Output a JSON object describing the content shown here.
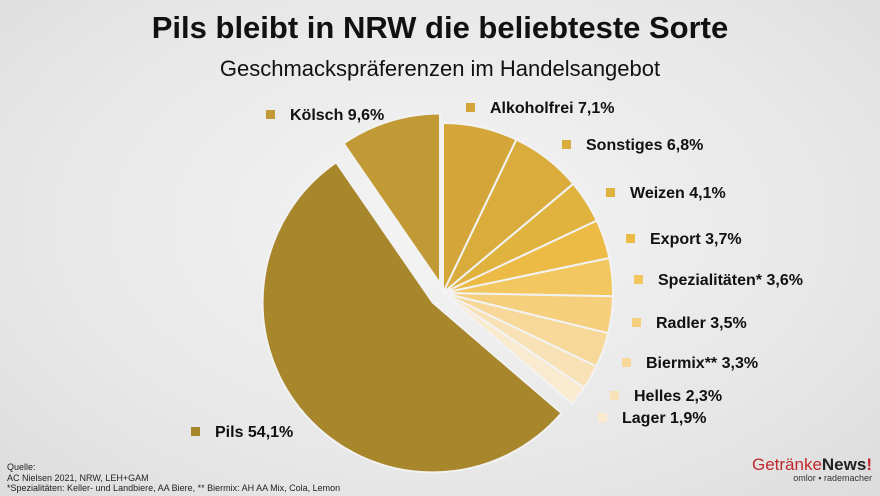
{
  "chart_data": {
    "type": "pie",
    "title": "Pils bleibt in NRW die beliebteste Sorte",
    "subtitle": "Geschmackspräferenzen im Handelsangebot",
    "slices": [
      {
        "name": "Alkoholfrei",
        "value": 7.1,
        "label": "Alkoholfrei 7,1%",
        "color": "#D4A63A"
      },
      {
        "name": "Sonstiges",
        "value": 6.8,
        "label": "Sonstiges  6,8%",
        "color": "#D9AC3C"
      },
      {
        "name": "Weizen",
        "value": 4.1,
        "label": "Weizen 4,1%",
        "color": "#E0B33F"
      },
      {
        "name": "Export",
        "value": 3.7,
        "label": "Export 3,7%",
        "color": "#ECBB45"
      },
      {
        "name": "Spezialitäten*",
        "value": 3.6,
        "label": "Spezialitäten* 3,6%",
        "color": "#F2C75F"
      },
      {
        "name": "Radler",
        "value": 3.5,
        "label": "Radler 3,5%",
        "color": "#F5CF7C"
      },
      {
        "name": "Biermix**",
        "value": 3.3,
        "label": "Biermix** 3,3%",
        "color": "#F7D898"
      },
      {
        "name": "Helles",
        "value": 2.3,
        "label": "Helles 2,3%",
        "color": "#F8E1B4"
      },
      {
        "name": "Lager",
        "value": 1.9,
        "label": "Lager 1,9%",
        "color": "#FAEAD0"
      },
      {
        "name": "Pils",
        "value": 54.1,
        "label": "Pils 54,1%",
        "color": "#A8862C",
        "exploded": true
      },
      {
        "name": "Kölsch",
        "value": 9.6,
        "label": "Kölsch 9,6%",
        "color": "#C29A35",
        "exploded": true
      }
    ],
    "legend_placement": "labels beside slices"
  },
  "source": {
    "line1": "Quelle:",
    "line2": "AC Nielsen 2021, NRW, LEH+GAM",
    "line3": "*Spezialitäten: Keller- und Landbiere, AA Biere, ** Biermix: AH AA Mix, Cola, Lemon"
  },
  "logo": {
    "part1": "Getränke",
    "part2": "News",
    "mark": "!",
    "tagline": "omlor ▪ rademacher"
  }
}
